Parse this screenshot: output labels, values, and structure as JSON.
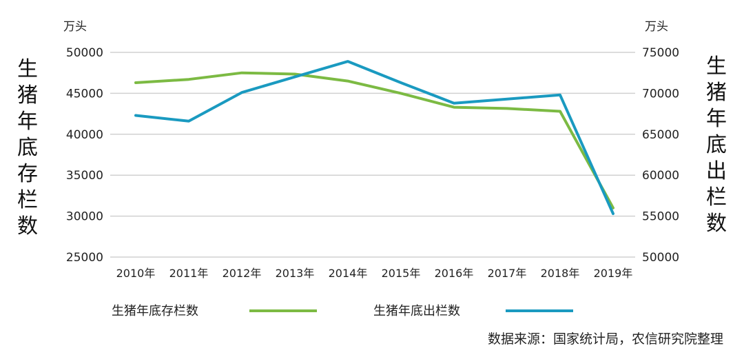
{
  "chart_data": {
    "type": "line",
    "categories": [
      "2010年",
      "2011年",
      "2012年",
      "2013年",
      "2014年",
      "2015年",
      "2016年",
      "2017年",
      "2018年",
      "2019年"
    ],
    "series": [
      {
        "name": "生猪年底存栏数",
        "axis": "left",
        "color": "#7cba43",
        "values": [
          46300,
          46700,
          47500,
          47350,
          46500,
          45000,
          43300,
          43150,
          42800,
          31000
        ]
      },
      {
        "name": "生猪年底出栏数",
        "axis": "right",
        "color": "#1a9ac0",
        "values": [
          67300,
          66600,
          70100,
          72000,
          73900,
          71300,
          68800,
          69300,
          69800,
          55300
        ]
      }
    ],
    "y_left": {
      "label": "生猪年底存栏数",
      "unit": "万头",
      "ylim": [
        25000,
        50000
      ],
      "ticks": [
        "25000",
        "30000",
        "35000",
        "40000",
        "45000",
        "50000"
      ]
    },
    "y_right": {
      "label": "生猪年底出栏数",
      "unit": "万头",
      "ylim": [
        50000,
        75000
      ],
      "ticks": [
        "50000",
        "55000",
        "60000",
        "65000",
        "70000",
        "75000"
      ]
    },
    "grid": true,
    "legend": "bottom"
  },
  "source": "数据来源：国家统计局，农信研究院整理"
}
